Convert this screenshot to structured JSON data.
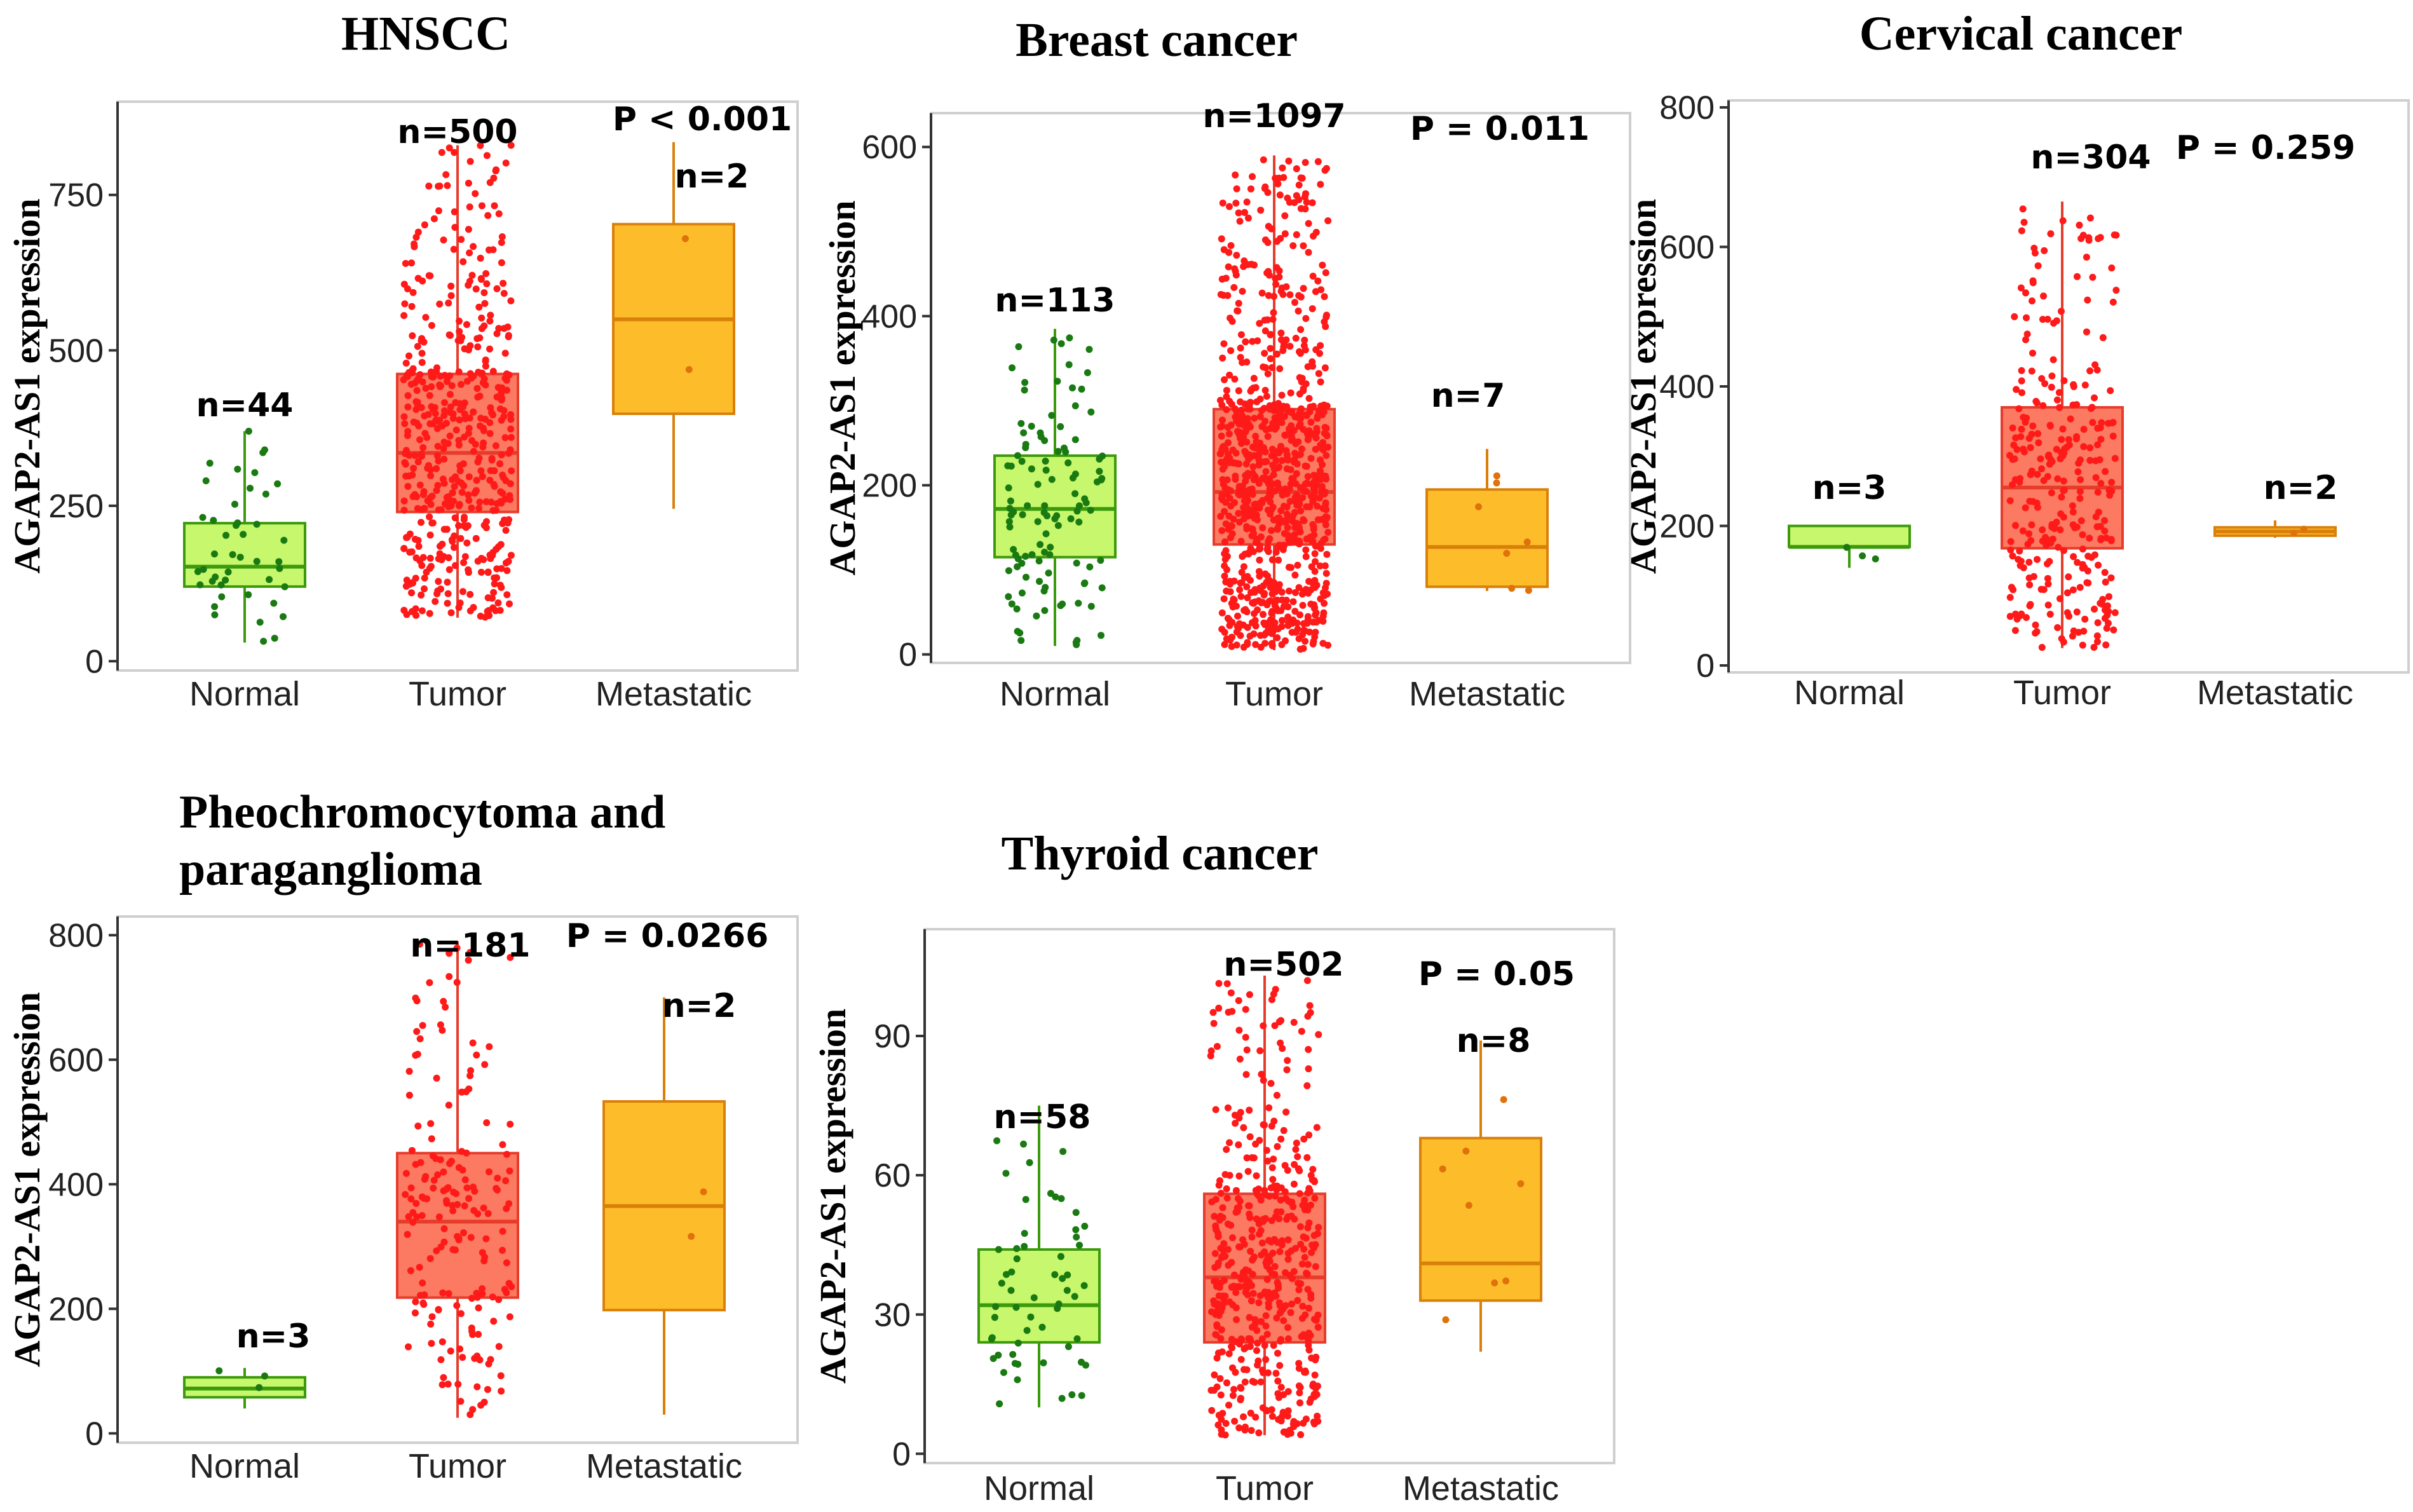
{
  "colors": {
    "normal_fill": "#c6f76c",
    "normal_stroke": "#3c9a0c",
    "normal_point": "#1a7a12",
    "tumor_fill": "#fb7a61",
    "tumor_stroke": "#e63c2c",
    "tumor_point": "#ff1a1a",
    "met_fill": "#fdbd2b",
    "met_stroke": "#d9800a",
    "met_point": "#e0720c"
  },
  "chart_data": [
    {
      "type": "box",
      "title": "HNSCC",
      "ylabel": "AGAP2-AS1 expression",
      "categories": [
        "Normal",
        "Tumor",
        "Metastatic"
      ],
      "ylim": [
        -15,
        900
      ],
      "yticks": [
        0,
        250,
        500,
        750
      ],
      "p_label": "P < 0.001",
      "boxes": [
        {
          "name": "Normal",
          "n_label": "n=44",
          "n": 44,
          "min": 30,
          "q1": 120,
          "median": 152,
          "q3": 222,
          "max": 370
        },
        {
          "name": "Tumor",
          "n_label": "n=500",
          "n": 500,
          "min": 70,
          "q1": 240,
          "median": 335,
          "q3": 462,
          "max": 830
        },
        {
          "name": "Metastatic",
          "n_label": "n=2",
          "n": 2,
          "min": 245,
          "q1": 398,
          "median": 550,
          "q3": 703,
          "max": 835
        }
      ]
    },
    {
      "type": "box",
      "title": "Breast cancer",
      "ylabel": "AGAP2-AS1 expression",
      "categories": [
        "Normal",
        "Tumor",
        "Metastatic"
      ],
      "ylim": [
        -10,
        640
      ],
      "yticks": [
        0,
        200,
        400,
        600
      ],
      "p_label": "P = 0.011",
      "boxes": [
        {
          "name": "Normal",
          "n_label": "n=113",
          "n": 113,
          "min": 10,
          "q1": 115,
          "median": 172,
          "q3": 235,
          "max": 385
        },
        {
          "name": "Tumor",
          "n_label": "n=1097",
          "n": 1097,
          "min": 5,
          "q1": 130,
          "median": 192,
          "q3": 290,
          "max": 590
        },
        {
          "name": "Metastatic",
          "n_label": "n=7",
          "n": 7,
          "min": 75,
          "q1": 80,
          "median": 127,
          "q3": 195,
          "max": 243
        }
      ]
    },
    {
      "type": "box",
      "title": "Cervical cancer",
      "ylabel": "AGAP2-AS1 expression",
      "categories": [
        "Normal",
        "Tumor",
        "Metastatic"
      ],
      "ylim": [
        -10,
        810
      ],
      "yticks": [
        0,
        200,
        400,
        600,
        800
      ],
      "p_label": "P = 0.259",
      "boxes": [
        {
          "name": "Normal",
          "n_label": "n=3",
          "n": 3,
          "min": 140,
          "q1": 170,
          "median": 170,
          "q3": 200,
          "max": 200
        },
        {
          "name": "Tumor",
          "n_label": "n=304",
          "n": 304,
          "min": 25,
          "q1": 168,
          "median": 255,
          "q3": 370,
          "max": 665
        },
        {
          "name": "Metastatic",
          "n_label": "n=2",
          "n": 2,
          "min": 183,
          "q1": 186,
          "median": 192,
          "q3": 198,
          "max": 208
        }
      ]
    },
    {
      "type": "box",
      "title": "Pheochromocytoma and paraganglioma",
      "title_lines": [
        "Pheochromocytoma and",
        "paraganglioma"
      ],
      "ylabel": "AGAP2-AS1 expression",
      "categories": [
        "Normal",
        "Tumor",
        "Metastatic"
      ],
      "ylim": [
        -15,
        830
      ],
      "yticks": [
        0,
        200,
        400,
        600,
        800
      ],
      "p_label": "P = 0.0266",
      "boxes": [
        {
          "name": "Normal",
          "n_label": "n=3",
          "n": 3,
          "min": 40,
          "q1": 58,
          "median": 72,
          "q3": 90,
          "max": 105
        },
        {
          "name": "Tumor",
          "n_label": "n=181",
          "n": 181,
          "min": 25,
          "q1": 218,
          "median": 340,
          "q3": 450,
          "max": 790
        },
        {
          "name": "Metastatic",
          "n_label": "n=2",
          "n": 2,
          "min": 30,
          "q1": 198,
          "median": 365,
          "q3": 533,
          "max": 700
        }
      ]
    },
    {
      "type": "box",
      "title": "Thyroid cancer",
      "ylabel": "AGAP2-AS1 expression",
      "categories": [
        "Normal",
        "Tumor",
        "Metastatic"
      ],
      "ylim": [
        -2,
        113
      ],
      "yticks": [
        0,
        30,
        60,
        90
      ],
      "p_label": "P = 0.05",
      "boxes": [
        {
          "name": "Normal",
          "n_label": "n=58",
          "n": 58,
          "min": 10,
          "q1": 24,
          "median": 32,
          "q3": 44,
          "max": 75
        },
        {
          "name": "Tumor",
          "n_label": "n=502",
          "n": 502,
          "min": 4,
          "q1": 24,
          "median": 38,
          "q3": 56,
          "max": 103
        },
        {
          "name": "Metastatic",
          "n_label": "n=8",
          "n": 8,
          "min": 22,
          "q1": 33,
          "median": 41,
          "q3": 68,
          "max": 89
        }
      ]
    }
  ]
}
